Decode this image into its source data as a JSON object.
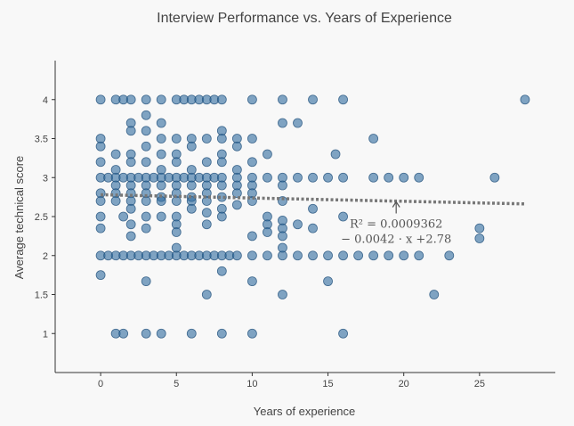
{
  "chart_data": {
    "type": "scatter",
    "title": "Interview Performance vs. Years of Experience",
    "xlabel": "Years of experience",
    "ylabel": "Average technical score",
    "xlim": [
      -3,
      30
    ],
    "ylim": [
      0.5,
      4.5
    ],
    "x_ticks": [
      0,
      5,
      10,
      15,
      20,
      25
    ],
    "y_ticks": [
      1,
      1.5,
      2,
      2.5,
      3,
      3.5,
      4
    ],
    "x_tick_labels": [
      "0",
      "5",
      "10",
      "15",
      "20",
      "25"
    ],
    "y_tick_labels": [
      "1",
      "1.5",
      "2",
      "2.5",
      "3",
      "3.5",
      "4"
    ],
    "grid": false,
    "marker_color": "#2e6a9e",
    "marker_edge_color": "#1f4f7a",
    "trendline": {
      "slope": -0.0042,
      "intercept": 2.78,
      "x_range": [
        0,
        28
      ],
      "color": "#777777",
      "style": "dotted"
    },
    "annotation": {
      "line1": "R² = 0.0009362",
      "line2": "− 0.0042 · x +2.78",
      "arrow_x": 19.5,
      "arrow_y": 2.7
    },
    "points": [
      [
        0,
        4
      ],
      [
        1,
        4
      ],
      [
        1.5,
        4
      ],
      [
        2,
        4
      ],
      [
        3,
        4
      ],
      [
        4,
        4
      ],
      [
        5,
        4
      ],
      [
        5.5,
        4
      ],
      [
        6,
        4
      ],
      [
        6.5,
        4
      ],
      [
        7,
        4
      ],
      [
        7.5,
        4
      ],
      [
        8,
        4
      ],
      [
        10,
        4
      ],
      [
        12,
        4
      ],
      [
        14,
        4
      ],
      [
        16,
        4
      ],
      [
        28,
        4
      ],
      [
        2,
        3.7
      ],
      [
        3,
        3.6
      ],
      [
        3,
        3.8
      ],
      [
        4,
        3.7
      ],
      [
        12,
        3.7
      ],
      [
        13,
        3.7
      ],
      [
        18,
        3.5
      ],
      [
        8,
        3.6
      ],
      [
        0,
        3.5
      ],
      [
        2,
        3.6
      ],
      [
        4,
        3.5
      ],
      [
        5,
        3.5
      ],
      [
        6,
        3.5
      ],
      [
        7,
        3.5
      ],
      [
        8,
        3.5
      ],
      [
        9,
        3.5
      ],
      [
        10,
        3.5
      ],
      [
        0,
        3.4
      ],
      [
        1,
        3.3
      ],
      [
        2,
        3.3
      ],
      [
        3,
        3.4
      ],
      [
        4,
        3.3
      ],
      [
        5,
        3.3
      ],
      [
        6,
        3.4
      ],
      [
        8,
        3.3
      ],
      [
        9,
        3.4
      ],
      [
        11,
        3.3
      ],
      [
        15.5,
        3.3
      ],
      [
        0,
        3.2
      ],
      [
        1,
        3.1
      ],
      [
        2,
        3.2
      ],
      [
        3,
        3.2
      ],
      [
        4,
        3.1
      ],
      [
        5,
        3.2
      ],
      [
        6,
        3.1
      ],
      [
        7,
        3.2
      ],
      [
        8,
        3.2
      ],
      [
        9,
        3.1
      ],
      [
        10,
        3.2
      ],
      [
        0,
        3
      ],
      [
        0.5,
        3
      ],
      [
        1,
        3
      ],
      [
        1.5,
        3
      ],
      [
        2,
        3
      ],
      [
        2.5,
        3
      ],
      [
        3,
        3
      ],
      [
        3.5,
        3
      ],
      [
        4,
        3
      ],
      [
        4.5,
        3
      ],
      [
        5,
        3
      ],
      [
        5.5,
        3
      ],
      [
        6,
        3
      ],
      [
        6.5,
        3
      ],
      [
        7,
        3
      ],
      [
        7.5,
        3
      ],
      [
        8,
        3
      ],
      [
        9,
        3
      ],
      [
        10,
        3
      ],
      [
        11,
        3
      ],
      [
        12,
        3
      ],
      [
        13,
        3
      ],
      [
        14,
        3
      ],
      [
        15,
        3
      ],
      [
        16,
        3
      ],
      [
        18,
        3
      ],
      [
        19,
        3
      ],
      [
        20,
        3
      ],
      [
        21,
        3
      ],
      [
        26,
        3
      ],
      [
        1,
        2.9
      ],
      [
        2,
        2.9
      ],
      [
        3,
        2.9
      ],
      [
        4,
        2.9
      ],
      [
        5,
        2.9
      ],
      [
        6,
        2.9
      ],
      [
        7,
        2.9
      ],
      [
        8,
        2.9
      ],
      [
        9,
        2.9
      ],
      [
        10,
        2.9
      ],
      [
        12,
        2.9
      ],
      [
        0,
        2.8
      ],
      [
        1,
        2.8
      ],
      [
        2,
        2.8
      ],
      [
        3,
        2.8
      ],
      [
        4,
        2.75
      ],
      [
        5,
        2.8
      ],
      [
        6,
        2.75
      ],
      [
        7,
        2.8
      ],
      [
        8,
        2.75
      ],
      [
        9,
        2.8
      ],
      [
        10,
        2.8
      ],
      [
        0,
        2.7
      ],
      [
        1,
        2.7
      ],
      [
        2,
        2.7
      ],
      [
        3,
        2.7
      ],
      [
        4,
        2.7
      ],
      [
        5,
        2.7
      ],
      [
        6,
        2.7
      ],
      [
        7,
        2.7
      ],
      [
        8,
        2.6
      ],
      [
        9,
        2.65
      ],
      [
        10,
        2.7
      ],
      [
        12,
        2.7
      ],
      [
        14,
        2.6
      ],
      [
        0,
        2.5
      ],
      [
        1.5,
        2.5
      ],
      [
        2,
        2.6
      ],
      [
        3,
        2.5
      ],
      [
        4,
        2.5
      ],
      [
        5,
        2.5
      ],
      [
        6,
        2.6
      ],
      [
        7,
        2.55
      ],
      [
        8,
        2.5
      ],
      [
        11,
        2.5
      ],
      [
        12,
        2.45
      ],
      [
        16,
        2.5
      ],
      [
        0,
        2.35
      ],
      [
        2,
        2.4
      ],
      [
        3,
        2.35
      ],
      [
        5,
        2.4
      ],
      [
        7,
        2.4
      ],
      [
        11,
        2.4
      ],
      [
        12,
        2.35
      ],
      [
        13,
        2.4
      ],
      [
        14,
        2.35
      ],
      [
        2,
        2.25
      ],
      [
        5,
        2.3
      ],
      [
        10,
        2.25
      ],
      [
        11,
        2.3
      ],
      [
        12,
        2.25
      ],
      [
        25,
        2.35
      ],
      [
        25,
        2.22
      ],
      [
        0,
        2
      ],
      [
        0.5,
        2
      ],
      [
        1,
        2
      ],
      [
        1.5,
        2
      ],
      [
        2,
        2
      ],
      [
        2.5,
        2
      ],
      [
        3,
        2
      ],
      [
        3.5,
        2
      ],
      [
        4,
        2
      ],
      [
        4.5,
        2
      ],
      [
        5,
        2
      ],
      [
        5.5,
        2
      ],
      [
        6,
        2
      ],
      [
        6.5,
        2
      ],
      [
        7,
        2
      ],
      [
        7.5,
        2
      ],
      [
        8,
        2
      ],
      [
        8.5,
        2
      ],
      [
        9,
        2
      ],
      [
        10,
        2
      ],
      [
        11,
        2
      ],
      [
        12,
        2
      ],
      [
        13,
        2
      ],
      [
        14,
        2
      ],
      [
        15,
        2
      ],
      [
        16,
        2
      ],
      [
        17,
        2
      ],
      [
        18,
        2
      ],
      [
        19,
        2
      ],
      [
        20,
        2
      ],
      [
        21,
        2
      ],
      [
        23,
        2
      ],
      [
        0,
        1.75
      ],
      [
        8,
        1.8
      ],
      [
        12,
        2.1
      ],
      [
        5,
        2.1
      ],
      [
        3,
        1.67
      ],
      [
        10,
        1.67
      ],
      [
        15,
        1.67
      ],
      [
        7,
        1.5
      ],
      [
        12,
        1.5
      ],
      [
        22,
        1.5
      ],
      [
        1,
        1
      ],
      [
        1.5,
        1
      ],
      [
        3,
        1
      ],
      [
        4,
        1
      ],
      [
        6,
        1
      ],
      [
        8,
        1
      ],
      [
        10,
        1
      ],
      [
        16,
        1
      ]
    ]
  }
}
